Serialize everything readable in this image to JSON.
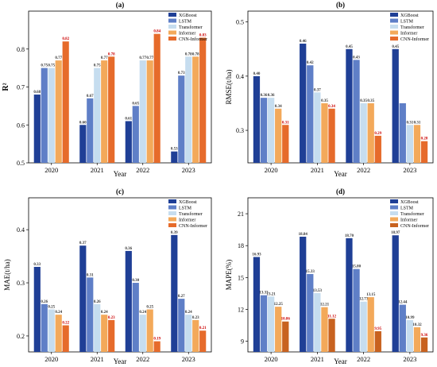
{
  "colors": {
    "XGBoost": "#1f3f96",
    "LSTM": "#5f7fc7",
    "Transformer": "#c6ddef",
    "Informer": "#f3a95a",
    "CNN-Informer": "#e66b2b",
    "CNN-Informer-MAPE": "#c8621f",
    "label_red": "#cc0000",
    "label_default": "#333333"
  },
  "chart_data": [
    {
      "type": "bar",
      "title": "(a)",
      "xlabel": "Year",
      "ylabel": "R²",
      "categories": [
        "2020",
        "2021",
        "2022",
        "2023"
      ],
      "ylim": [
        0.5,
        0.9
      ],
      "yticks": [
        "0.5",
        "0.6",
        "0.7",
        "0.8"
      ],
      "ytick_values": [
        0.5,
        0.6,
        0.7,
        0.8
      ],
      "legend_position": "top-right",
      "series": [
        {
          "name": "XGBoost",
          "values": [
            0.68,
            0.6,
            0.61,
            0.53
          ],
          "labels": [
            "0.68",
            "0.60",
            "0.61",
            "0.53"
          ]
        },
        {
          "name": "LSTM",
          "values": [
            0.75,
            0.67,
            0.65,
            0.73
          ],
          "labels": [
            "0.75",
            "0.67",
            "0.65",
            "0.73"
          ]
        },
        {
          "name": "Transformer",
          "values": [
            0.75,
            0.75,
            0.77,
            0.78
          ],
          "labels": [
            "0.75",
            "0.75",
            "0.77",
            "0.78"
          ]
        },
        {
          "name": "Informer",
          "values": [
            0.77,
            0.77,
            0.77,
            0.78
          ],
          "labels": [
            "0.77",
            "0.77",
            "0.77",
            "0.78"
          ]
        },
        {
          "name": "CNN-Informer",
          "values": [
            0.82,
            0.78,
            0.84,
            0.83
          ],
          "labels": [
            "0.82",
            "0.78",
            "0.84",
            "0.83"
          ]
        }
      ]
    },
    {
      "type": "bar",
      "title": "(b)",
      "xlabel": "Year",
      "ylabel": "RMSE(t/ha)",
      "categories": [
        "2020",
        "2021",
        "2022",
        "2023"
      ],
      "ylim": [
        0.24,
        0.52
      ],
      "yticks": [
        "0.3",
        "0.4",
        "0.5"
      ],
      "ytick_values": [
        0.3,
        0.4,
        0.5
      ],
      "legend_position": "top-right",
      "series": [
        {
          "name": "XGBoost",
          "values": [
            0.4,
            0.46,
            0.45,
            0.45
          ],
          "labels": [
            "0.40",
            "0.46",
            "0.45",
            "0.45"
          ]
        },
        {
          "name": "LSTM",
          "values": [
            0.36,
            0.42,
            0.43,
            0.35
          ],
          "labels": [
            "0.36",
            "0.42",
            "0.43",
            ""
          ]
        },
        {
          "name": "Transformer",
          "values": [
            0.36,
            0.37,
            0.35,
            0.31
          ],
          "labels": [
            "0.36",
            "0.37",
            "0.35",
            "0.31"
          ]
        },
        {
          "name": "Informer",
          "values": [
            0.34,
            0.35,
            0.35,
            0.31
          ],
          "labels": [
            "0.34",
            "0.35",
            "0.35",
            "0.31"
          ]
        },
        {
          "name": "CNN-Informer",
          "values": [
            0.31,
            0.34,
            0.29,
            0.28
          ],
          "labels": [
            "0.31",
            "0.34",
            "0.29",
            "0.28"
          ]
        }
      ]
    },
    {
      "type": "bar",
      "title": "(c)",
      "xlabel": "Year",
      "ylabel": "MAE(t/ha)",
      "categories": [
        "2020",
        "2021",
        "2022",
        "2023"
      ],
      "ylim": [
        0.17,
        0.46
      ],
      "yticks": [
        "0.2",
        "0.3",
        "0.4"
      ],
      "ytick_values": [
        0.2,
        0.3,
        0.4
      ],
      "legend_position": "top-right",
      "series": [
        {
          "name": "XGBoost",
          "values": [
            0.33,
            0.37,
            0.36,
            0.39
          ],
          "labels": [
            "0.33",
            "0.37",
            "0.36",
            "0.39"
          ]
        },
        {
          "name": "LSTM",
          "values": [
            0.26,
            0.31,
            0.3,
            0.27
          ],
          "labels": [
            "0.26",
            "0.31",
            "0.30",
            "0.27"
          ]
        },
        {
          "name": "Transformer",
          "values": [
            0.25,
            0.26,
            0.24,
            0.24
          ],
          "labels": [
            "0.25",
            "0.26",
            "0.24",
            "0.24"
          ]
        },
        {
          "name": "Informer",
          "values": [
            0.24,
            0.24,
            0.25,
            0.23
          ],
          "labels": [
            "0.24",
            "0.24",
            "0.25",
            "0.23"
          ]
        },
        {
          "name": "CNN-Informer",
          "values": [
            0.22,
            0.23,
            0.19,
            0.21
          ],
          "labels": [
            "0.22",
            "0.23",
            "0.19",
            "0.21"
          ]
        }
      ]
    },
    {
      "type": "bar",
      "title": "(d)",
      "xlabel": "Year",
      "ylabel": "MAPE(%)",
      "categories": [
        "2020",
        "2021",
        "2022",
        "2023"
      ],
      "ylim": [
        8,
        22.5
      ],
      "yticks": [
        "9",
        "12",
        "15",
        "18",
        "21"
      ],
      "ytick_values": [
        9,
        12,
        15,
        18,
        21
      ],
      "legend_position": "top-right",
      "series": [
        {
          "name": "XGBoost",
          "values": [
            16.93,
            18.84,
            18.7,
            18.97
          ],
          "labels": [
            "16.93",
            "18.84",
            "18.70",
            "18.97"
          ]
        },
        {
          "name": "LSTM",
          "values": [
            13.33,
            15.33,
            15.8,
            12.44
          ],
          "labels": [
            "13.33",
            "15.33",
            "15.80",
            "12.44"
          ]
        },
        {
          "name": "Transformer",
          "values": [
            13.21,
            13.53,
            12.73,
            10.99
          ],
          "labels": [
            "13.21",
            "13.53",
            "12.73",
            "10.99"
          ]
        },
        {
          "name": "Informer",
          "values": [
            12.25,
            12.21,
            13.15,
            10.32
          ],
          "labels": [
            "12.25",
            "12.21",
            "13.15",
            "10.32"
          ]
        },
        {
          "name": "CNN-Informer",
          "values": [
            10.86,
            11.12,
            9.95,
            9.36
          ],
          "labels": [
            "10.86",
            "11.12",
            "9.95",
            "9.36"
          ]
        }
      ]
    }
  ]
}
